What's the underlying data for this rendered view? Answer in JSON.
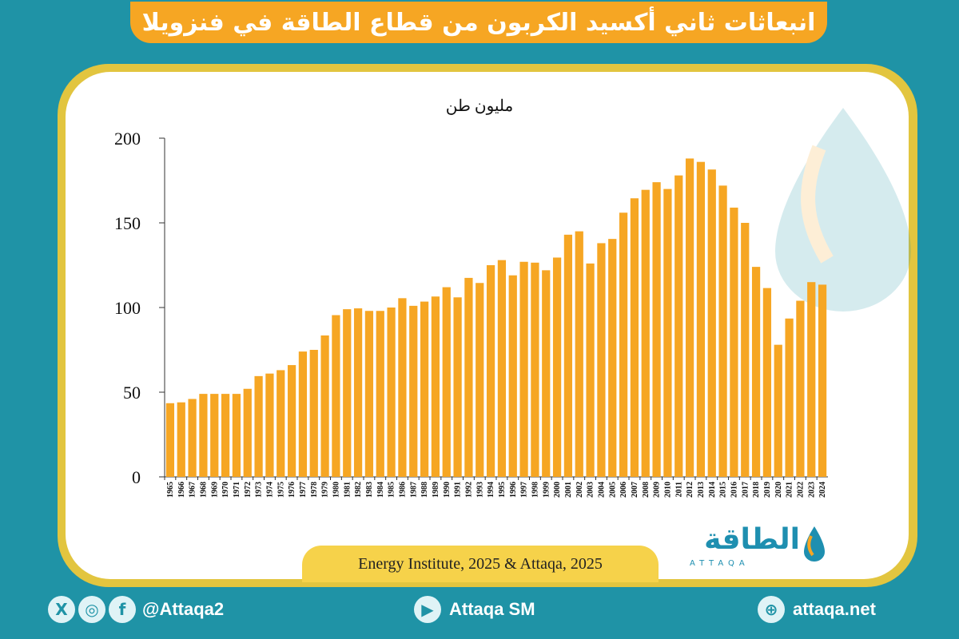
{
  "title": "انبعاثات ثاني أكسيد الكربون من قطاع الطاقة في فنزويلا",
  "source": "Energy Institute, 2025 & Attaqa, 2025",
  "logo": {
    "arabic": "الطاقة",
    "english": "ATTAQA"
  },
  "footer": {
    "social_handle": "@Attaqa2",
    "youtube_label": "Attaqa SM",
    "website": "attaqa.net"
  },
  "colors": {
    "bar": "#f6a623",
    "background": "#1f93a6",
    "frame": "#e2c53f"
  },
  "chart_data": {
    "type": "bar",
    "unit_label": "مليون طن",
    "ylim": [
      0,
      200
    ],
    "yticks": [
      0,
      50,
      100,
      150,
      200
    ],
    "categories": [
      "1965",
      "1966",
      "1967",
      "1968",
      "1969",
      "1970",
      "1971",
      "1972",
      "1973",
      "1974",
      "1975",
      "1976",
      "1977",
      "1978",
      "1979",
      "1980",
      "1981",
      "1982",
      "1983",
      "1984",
      "1985",
      "1986",
      "1987",
      "1988",
      "1989",
      "1990",
      "1991",
      "1992",
      "1993",
      "1994",
      "1995",
      "1996",
      "1997",
      "1998",
      "1999",
      "2000",
      "2001",
      "2002",
      "2003",
      "2004",
      "2005",
      "2006",
      "2007",
      "2008",
      "2009",
      "2010",
      "2011",
      "2012",
      "2013",
      "2014",
      "2015",
      "2016",
      "2017",
      "2018",
      "2019",
      "2020",
      "2021",
      "2022",
      "2023",
      "2024"
    ],
    "values": [
      43.5,
      44,
      46,
      49,
      49,
      49,
      49,
      52,
      59.5,
      61,
      63,
      66,
      74,
      75,
      83.5,
      95.5,
      99,
      99.5,
      98,
      98,
      100,
      105.5,
      101,
      103.5,
      106.5,
      112,
      106,
      117.5,
      114.5,
      125,
      128,
      119,
      127,
      126.5,
      122,
      129.5,
      143,
      145,
      126,
      138,
      140.5,
      156,
      164.5,
      169.5,
      174,
      170,
      178,
      188,
      186,
      181.5,
      172,
      159,
      150,
      124,
      111.5,
      78,
      93.5,
      104,
      115,
      113.5
    ],
    "grid": false,
    "legend": "none"
  }
}
